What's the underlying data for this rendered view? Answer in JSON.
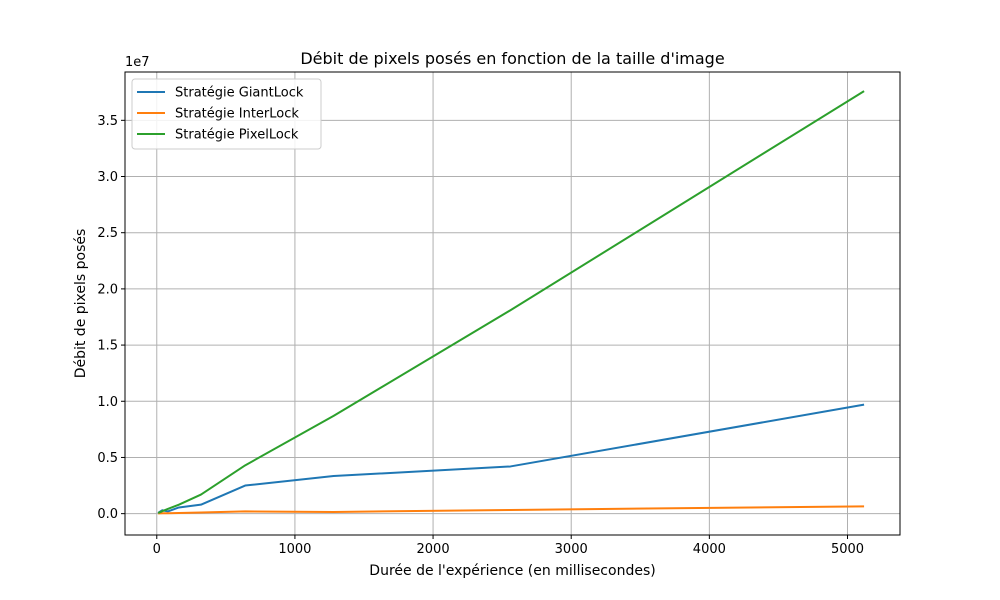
{
  "chart_data": {
    "type": "line",
    "title": "Débit de pixels posés en fonction de la taille d'image",
    "xlabel": "Durée de l'expérience (en millisecondes)",
    "ylabel": "Débit de pixels posés",
    "y_offset_text": "1e7",
    "xlim": [
      -230,
      5380
    ],
    "ylim": [
      -1900000,
      39300000
    ],
    "x_ticks": [
      0,
      1000,
      2000,
      3000,
      4000,
      5000
    ],
    "x_tick_labels": [
      "0",
      "1000",
      "2000",
      "3000",
      "4000",
      "5000"
    ],
    "y_ticks": [
      0,
      5000000,
      10000000,
      15000000,
      20000000,
      25000000,
      30000000,
      35000000
    ],
    "y_tick_labels": [
      "0.0",
      "0.5",
      "1.0",
      "1.5",
      "2.0",
      "2.5",
      "3.0",
      "3.5"
    ],
    "grid": true,
    "legend_position": "top-left",
    "series": [
      {
        "name": "Stratégie GiantLock",
        "color": "#1f77b4",
        "x": [
          10,
          20,
          40,
          80,
          160,
          320,
          640,
          1280,
          2560,
          5120
        ],
        "y": [
          50000,
          150000,
          300000,
          200000,
          550000,
          800000,
          2500000,
          3350000,
          4200000,
          9700000
        ]
      },
      {
        "name": "Stratégie InterLock",
        "color": "#ff7f0e",
        "x": [
          10,
          20,
          40,
          80,
          160,
          320,
          640,
          1280,
          2560,
          5120
        ],
        "y": [
          10000,
          20000,
          30000,
          40000,
          60000,
          100000,
          200000,
          150000,
          330000,
          650000
        ]
      },
      {
        "name": "Stratégie PixelLock",
        "color": "#2ca02c",
        "x": [
          10,
          20,
          40,
          80,
          160,
          320,
          640,
          1280,
          2560,
          5120
        ],
        "y": [
          60000,
          110000,
          220000,
          420000,
          800000,
          1700000,
          4300000,
          8700000,
          18100000,
          37600000
        ]
      }
    ]
  }
}
